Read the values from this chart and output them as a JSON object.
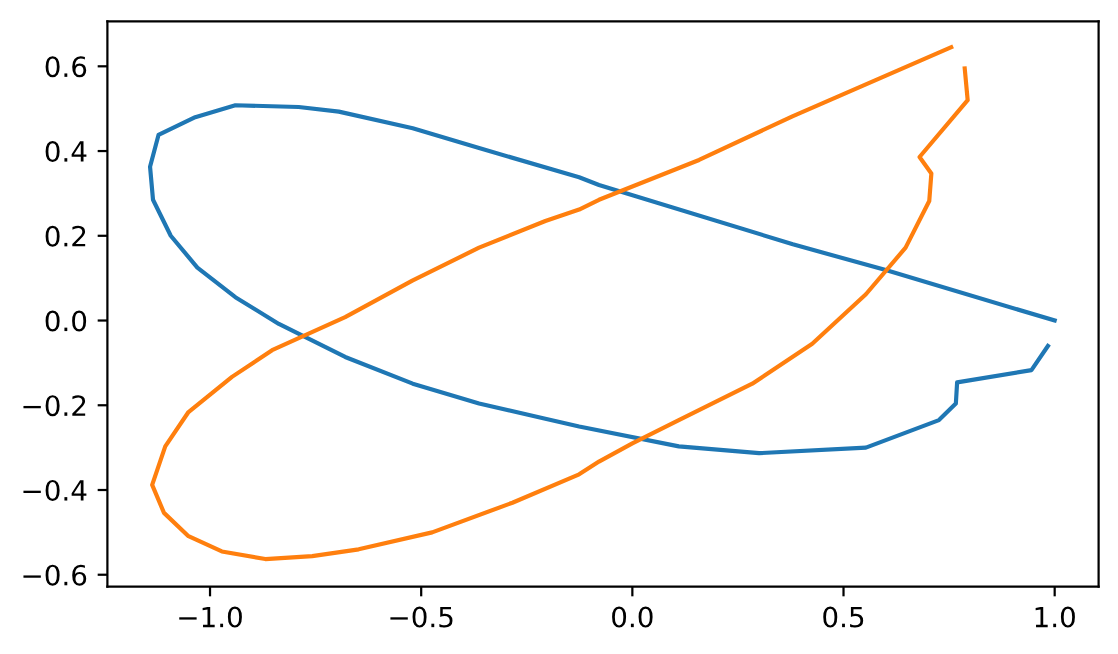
{
  "chart_data": {
    "type": "line",
    "xlim": [
      -1.243,
      1.104
    ],
    "ylim": [
      -0.628,
      0.706
    ],
    "xticks": [
      {
        "value": -1.0,
        "label": "−1.0"
      },
      {
        "value": -0.5,
        "label": "−0.5"
      },
      {
        "value": 0.0,
        "label": "0.0"
      },
      {
        "value": 0.5,
        "label": "0.5"
      },
      {
        "value": 1.0,
        "label": "1.0"
      }
    ],
    "yticks": [
      {
        "value": -0.6,
        "label": "−0.6"
      },
      {
        "value": -0.4,
        "label": "−0.4"
      },
      {
        "value": -0.2,
        "label": "−0.2"
      },
      {
        "value": 0.0,
        "label": "0.0"
      },
      {
        "value": 0.2,
        "label": "0.2"
      },
      {
        "value": 0.4,
        "label": "0.4"
      },
      {
        "value": 0.6,
        "label": "0.6"
      }
    ],
    "grid": false,
    "legend": false,
    "series": [
      {
        "color": "#1f77b4",
        "x": [
          1.0,
          0.6,
          0.38,
          -0.079,
          -0.126,
          -0.363,
          -0.52,
          -0.695,
          -0.79,
          -0.94,
          -1.035,
          -1.122,
          -1.142,
          -1.135,
          -1.093,
          -1.03,
          -0.94,
          -0.837,
          -0.68,
          -0.52,
          -0.363,
          -0.206,
          -0.126,
          0.11,
          0.3,
          0.553,
          0.726,
          0.766,
          0.769,
          0.945,
          0.984
        ],
        "values": [
          0.0,
          0.119,
          0.18,
          0.32,
          0.338,
          0.407,
          0.454,
          0.493,
          0.504,
          0.508,
          0.48,
          0.438,
          0.363,
          0.285,
          0.2,
          0.125,
          0.055,
          -0.008,
          -0.086,
          -0.149,
          -0.196,
          -0.232,
          -0.25,
          -0.297,
          -0.313,
          -0.3,
          -0.235,
          -0.196,
          -0.146,
          -0.117,
          -0.06
        ]
      },
      {
        "color": "#ff7f0e",
        "x": [
          0.787,
          0.794,
          0.68,
          0.708,
          0.703,
          0.647,
          0.553,
          0.426,
          0.284,
          0.11,
          0.0,
          -0.079,
          -0.126,
          -0.284,
          -0.474,
          -0.648,
          -0.758,
          -0.869,
          -0.972,
          -1.051,
          -1.109,
          -1.137,
          -1.106,
          -1.051,
          -0.948,
          -0.853,
          -0.68,
          -0.521,
          -0.363,
          -0.206,
          -0.126,
          -0.079,
          0.158,
          0.379,
          0.755
        ],
        "values": [
          0.595,
          0.52,
          0.386,
          0.347,
          0.282,
          0.172,
          0.062,
          -0.055,
          -0.149,
          -0.235,
          -0.29,
          -0.333,
          -0.363,
          -0.43,
          -0.5,
          -0.54,
          -0.556,
          -0.563,
          -0.545,
          -0.509,
          -0.454,
          -0.388,
          -0.297,
          -0.216,
          -0.133,
          -0.07,
          0.008,
          0.094,
          0.172,
          0.235,
          0.262,
          0.285,
          0.379,
          0.482,
          0.645
        ]
      }
    ]
  }
}
